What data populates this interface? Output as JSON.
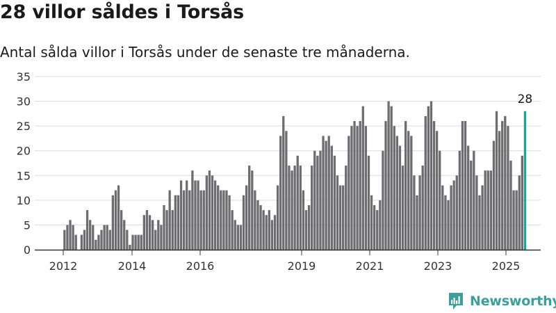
{
  "title": "28 villor såldes i Torsås",
  "subtitle": "Antal sålda villor i Torsås under de senaste tre månaderna.",
  "brand": "Newsworthy",
  "colors": {
    "bar": "#6d6d71",
    "highlight": "#2a9d96",
    "grid": "#dcdcdc",
    "axis": "#333333",
    "brand": "#3aa099"
  },
  "chart_data": {
    "type": "bar",
    "title": "28 villor såldes i Torsås",
    "ylim": [
      0,
      35
    ],
    "yticks": [
      0,
      5,
      10,
      15,
      20,
      25,
      30,
      35
    ],
    "xticks": [
      "2012",
      "2014",
      "2016",
      "2019",
      "2021",
      "2023",
      "2025"
    ],
    "grid": true,
    "highlight_label": "28",
    "values": [
      4,
      5,
      6,
      5,
      3,
      null,
      3,
      4,
      8,
      6,
      5,
      2,
      3,
      4,
      5,
      5,
      4,
      11,
      12,
      13,
      8,
      6,
      4,
      1,
      3,
      3,
      3,
      3,
      7,
      8,
      7,
      6,
      4,
      6,
      5,
      9,
      8,
      12,
      8,
      11,
      11,
      14,
      12,
      14,
      12,
      16,
      14,
      14,
      12,
      12,
      15,
      16,
      15,
      14,
      13,
      12,
      12,
      12,
      11,
      8,
      6,
      5,
      5,
      11,
      13,
      17,
      16,
      12,
      10,
      9,
      8,
      7,
      8,
      6,
      7,
      13,
      23,
      27,
      24,
      17,
      16,
      17,
      19,
      17,
      12,
      8,
      9,
      17,
      20,
      19,
      20,
      23,
      22,
      23,
      21,
      19,
      15,
      13,
      13,
      17,
      23,
      25,
      26,
      25,
      26,
      29,
      25,
      19,
      11,
      9,
      8,
      10,
      20,
      26,
      30,
      29,
      25,
      23,
      21,
      17,
      26,
      24,
      23,
      15,
      11,
      15,
      17,
      27,
      29,
      30,
      26,
      24,
      20,
      13,
      11,
      10,
      13,
      14,
      15,
      20,
      26,
      26,
      21,
      18,
      20,
      15,
      11,
      13,
      16,
      16,
      16,
      22,
      28,
      24,
      26,
      27,
      25,
      18,
      12,
      12,
      15,
      19,
      28
    ]
  }
}
